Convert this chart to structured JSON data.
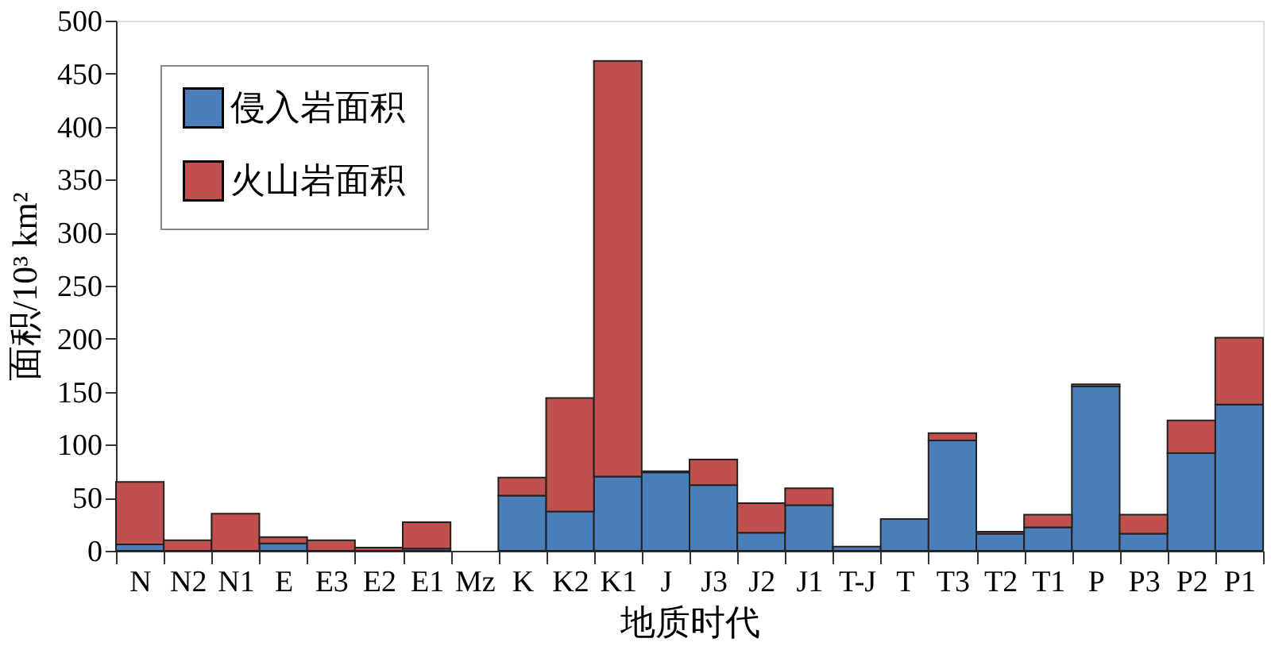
{
  "chart_data": {
    "type": "bar",
    "stacked": true,
    "xlabel": "地质时代",
    "ylabel": "面积/10³ km²",
    "categories": [
      "N",
      "N2",
      "N1",
      "E",
      "E3",
      "E2",
      "E1",
      "Mz",
      "K",
      "K2",
      "K1",
      "J",
      "J3",
      "J2",
      "J1",
      "T-J",
      "T",
      "T3",
      "T2",
      "T1",
      "P",
      "P3",
      "P2",
      "P1"
    ],
    "series": [
      {
        "name": "侵入岩面积",
        "color": "#4a7ebb",
        "values": [
          6,
          null,
          null,
          7,
          null,
          null,
          2,
          null,
          52,
          37,
          70,
          74,
          62,
          17,
          43,
          4,
          30,
          104,
          16,
          22,
          155,
          16,
          92,
          138
        ]
      },
      {
        "name": "火山岩面积",
        "color": "#c0504d",
        "values": [
          59,
          10,
          35,
          6,
          10,
          3,
          25,
          null,
          17,
          107,
          392,
          1,
          24,
          28,
          16,
          null,
          null,
          7,
          2,
          12,
          2,
          18,
          31,
          63
        ]
      }
    ],
    "ylim": [
      0,
      500
    ],
    "yticks": [
      0,
      50,
      100,
      150,
      200,
      250,
      300,
      350,
      400,
      450,
      500
    ],
    "grid": false,
    "legend": "top left"
  }
}
